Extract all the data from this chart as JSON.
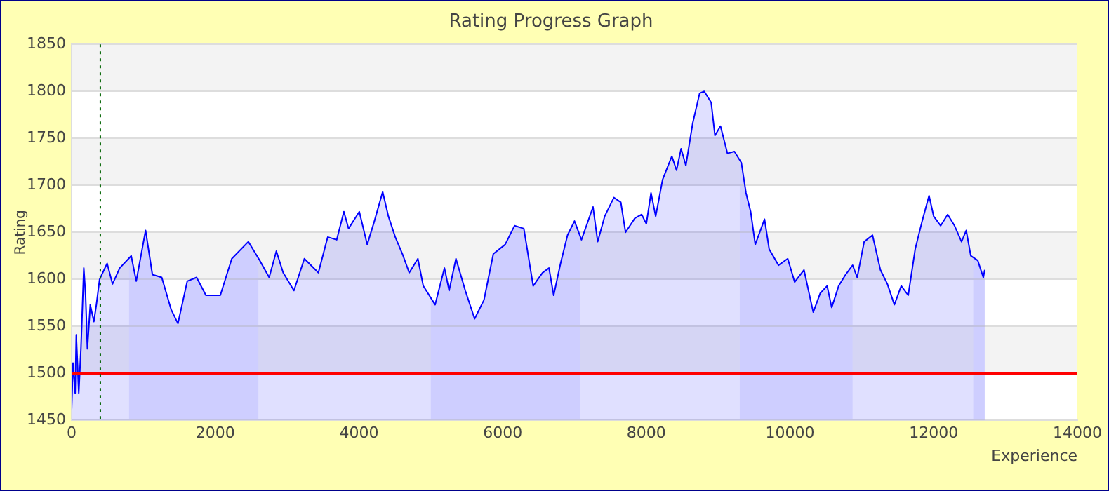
{
  "chart_data": {
    "type": "area",
    "title": "Rating Progress Graph",
    "xlabel": "Experience",
    "ylabel": "Rating",
    "xlim": [
      0,
      14000
    ],
    "xticks": [
      0,
      2000,
      4000,
      6000,
      8000,
      10000,
      12000,
      14000
    ],
    "ylim": [
      1450,
      1850
    ],
    "yticks": [
      1450,
      1500,
      1550,
      1600,
      1650,
      1700,
      1750,
      1800,
      1850
    ],
    "grid": "y",
    "legend": false,
    "series": [
      {
        "color": "#0000ff",
        "x": [
          0,
          20,
          50,
          65,
          100,
          130,
          170,
          195,
          220,
          260,
          310,
          345,
          390,
          495,
          570,
          670,
          830,
          900,
          1030,
          1125,
          1255,
          1385,
          1480,
          1610,
          1740,
          1870,
          2070,
          2230,
          2460,
          2620,
          2750,
          2850,
          2945,
          3095,
          3240,
          3435,
          3565,
          3690,
          3790,
          3855,
          4005,
          4115,
          4215,
          4330,
          4410,
          4505,
          4605,
          4700,
          4820,
          4895,
          5060,
          5190,
          5255,
          5350,
          5480,
          5610,
          5740,
          5870,
          6035,
          6165,
          6295,
          6425,
          6555,
          6645,
          6710,
          6806,
          6903,
          7000,
          7097,
          7258,
          7323,
          7420,
          7548,
          7645,
          7710,
          7840,
          7935,
          8000,
          8065,
          8130,
          8226,
          8355,
          8420,
          8484,
          8550,
          8645,
          8742,
          8806,
          8903,
          8955,
          9032,
          9129,
          9226,
          9323,
          9387,
          9452,
          9516,
          9645,
          9710,
          9839,
          9968,
          10065,
          10194,
          10323,
          10419,
          10516,
          10580,
          10677,
          10774,
          10871,
          10935,
          11032,
          11148,
          11258,
          11355,
          11452,
          11548,
          11645,
          11742,
          11839,
          11935,
          12000,
          12097,
          12194,
          12290,
          12387,
          12452,
          12516,
          12613,
          12690,
          12710
        ],
        "values": [
          1461,
          1511,
          1479,
          1541,
          1479,
          1526,
          1612,
          1583,
          1526,
          1573,
          1555,
          1573,
          1600,
          1617,
          1595,
          1612,
          1625,
          1598,
          1652,
          1605,
          1602,
          1568,
          1553,
          1598,
          1602,
          1583,
          1583,
          1622,
          1640,
          1620,
          1602,
          1630,
          1607,
          1588,
          1622,
          1607,
          1645,
          1642,
          1672,
          1654,
          1672,
          1637,
          1662,
          1693,
          1667,
          1645,
          1627,
          1607,
          1622,
          1593,
          1573,
          1612,
          1588,
          1622,
          1588,
          1558,
          1578,
          1627,
          1637,
          1657,
          1654,
          1593,
          1607,
          1612,
          1583,
          1617,
          1647,
          1662,
          1642,
          1677,
          1640,
          1667,
          1687,
          1682,
          1650,
          1665,
          1669,
          1659,
          1692,
          1667,
          1706,
          1731,
          1716,
          1739,
          1721,
          1766,
          1798,
          1800,
          1788,
          1753,
          1763,
          1734,
          1736,
          1724,
          1692,
          1672,
          1637,
          1664,
          1632,
          1615,
          1622,
          1597,
          1610,
          1565,
          1585,
          1593,
          1570,
          1593,
          1605,
          1615,
          1602,
          1640,
          1647,
          1610,
          1595,
          1573,
          1593,
          1583,
          1632,
          1662,
          1689,
          1667,
          1657,
          1669,
          1657,
          1640,
          1652,
          1625,
          1620,
          1602,
          1610
        ]
      }
    ],
    "ref_lines": [
      {
        "axis": "y",
        "value": 1500,
        "color": "#ff0000",
        "line_style": "solid"
      },
      {
        "axis": "x",
        "value": 400,
        "color": "#006400",
        "line_style": "dotted"
      }
    ],
    "bands": [
      {
        "axis": "x",
        "from": 800,
        "to": 2600,
        "color": "#ebebff"
      },
      {
        "axis": "x",
        "from": 5000,
        "to": 7080,
        "color": "#ebebff"
      },
      {
        "axis": "x",
        "from": 9300,
        "to": 10870,
        "color": "#ebebff"
      },
      {
        "axis": "x",
        "from": 12550,
        "to": 12710,
        "color": "#ebebff"
      }
    ]
  }
}
